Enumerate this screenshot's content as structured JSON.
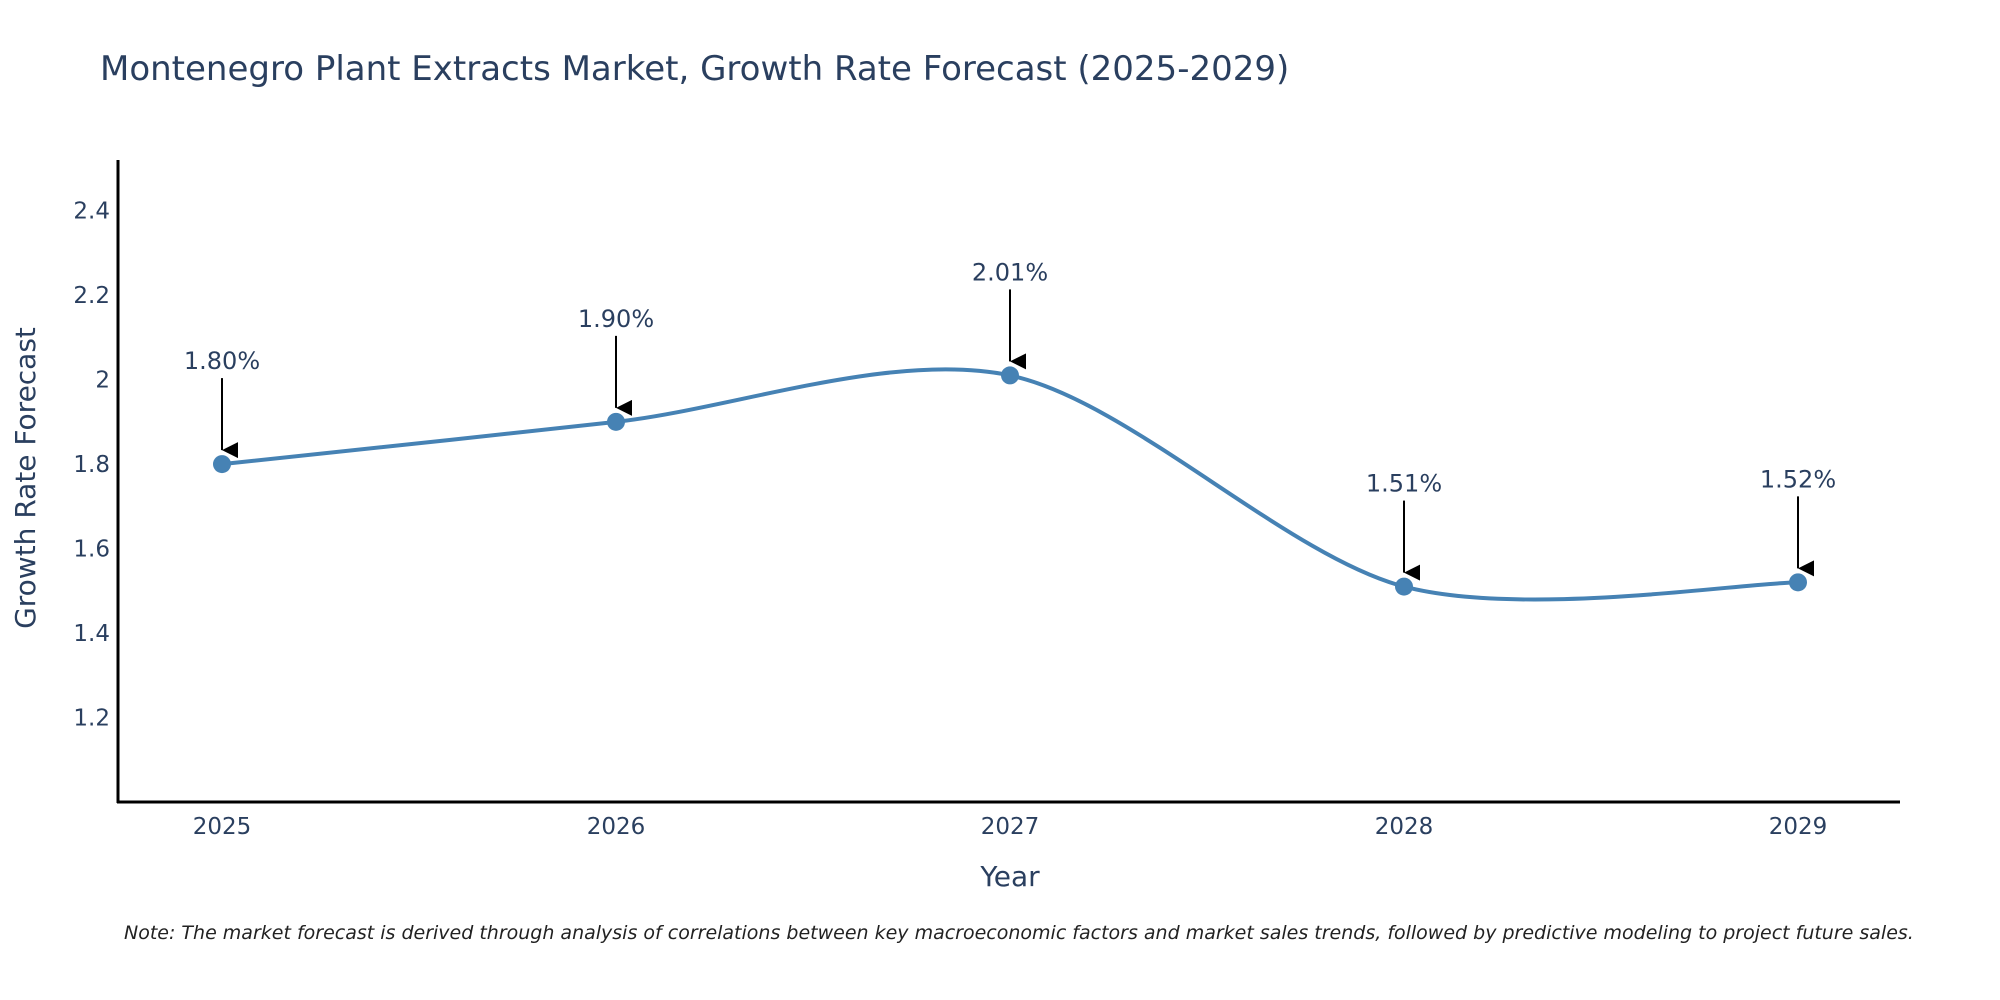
{
  "chart_data": {
    "type": "line",
    "title": "Montenegro Plant Extracts Market, Growth Rate Forecast (2025-2029)",
    "xlabel": "Year",
    "ylabel": "Growth Rate Forecast",
    "categories": [
      "2025",
      "2026",
      "2027",
      "2028",
      "2029"
    ],
    "series": [
      {
        "name": "Growth Rate Forecast",
        "values": [
          1.8,
          1.9,
          2.01,
          1.51,
          1.52
        ],
        "color": "#4682b4",
        "line_shape": "spline"
      }
    ],
    "data_labels": [
      "1.80%",
      "1.90%",
      "2.01%",
      "1.51%",
      "1.52%"
    ],
    "ylim": [
      1.0,
      2.52
    ],
    "yticks": [
      1.2,
      1.4,
      1.6,
      1.8,
      2.0,
      2.2,
      2.4
    ],
    "ytick_labels": [
      "1.2",
      "1.4",
      "1.6",
      "1.8",
      "2",
      "2.2",
      "2.4"
    ],
    "grid": false,
    "note": "Note: The market forecast is derived through analysis of correlations between key macroeconomic factors and market sales trends, followed by predictive modeling to project future sales."
  }
}
